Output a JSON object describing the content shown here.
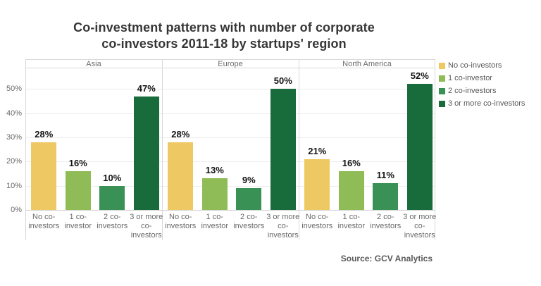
{
  "title": "Co-investment patterns with number of corporate\nco-investors 2011-18 by startups' region",
  "source": "Source: GCV Analytics",
  "chart_data": {
    "type": "bar",
    "title": "Co-investment patterns with number of corporate co-investors 2011-18 by startups' region",
    "panels": [
      "Asia",
      "Europe",
      "North America"
    ],
    "categories": [
      "No co-investors",
      "1 co-investor",
      "2 co-investors",
      "3 or more co-investors"
    ],
    "categories_display": [
      "No co-\ninvestors",
      "1 co-\ninvestor",
      "2 co-\ninvestors",
      "3 or more\nco-\ninvestors"
    ],
    "regions": [
      {
        "name": "Asia",
        "values": [
          28,
          16,
          10,
          47
        ]
      },
      {
        "name": "Europe",
        "values": [
          28,
          13,
          9,
          50
        ]
      },
      {
        "name": "North America",
        "values": [
          21,
          16,
          11,
          52
        ]
      }
    ],
    "value_suffix": "%",
    "colors": [
      "#eec963",
      "#90bc57",
      "#3a9155",
      "#186b3b"
    ],
    "legend": [
      "No co-investors",
      "1 co-investor",
      "2 co-investors",
      "3 or more co-investors"
    ],
    "legend_position": "right",
    "y_tick_values": [
      0,
      10,
      20,
      30,
      40,
      50
    ],
    "y_tick_labels": [
      "0%",
      "10%",
      "20%",
      "30%",
      "40%",
      "50%"
    ],
    "ylim": [
      0,
      58.5
    ],
    "grid": true
  }
}
